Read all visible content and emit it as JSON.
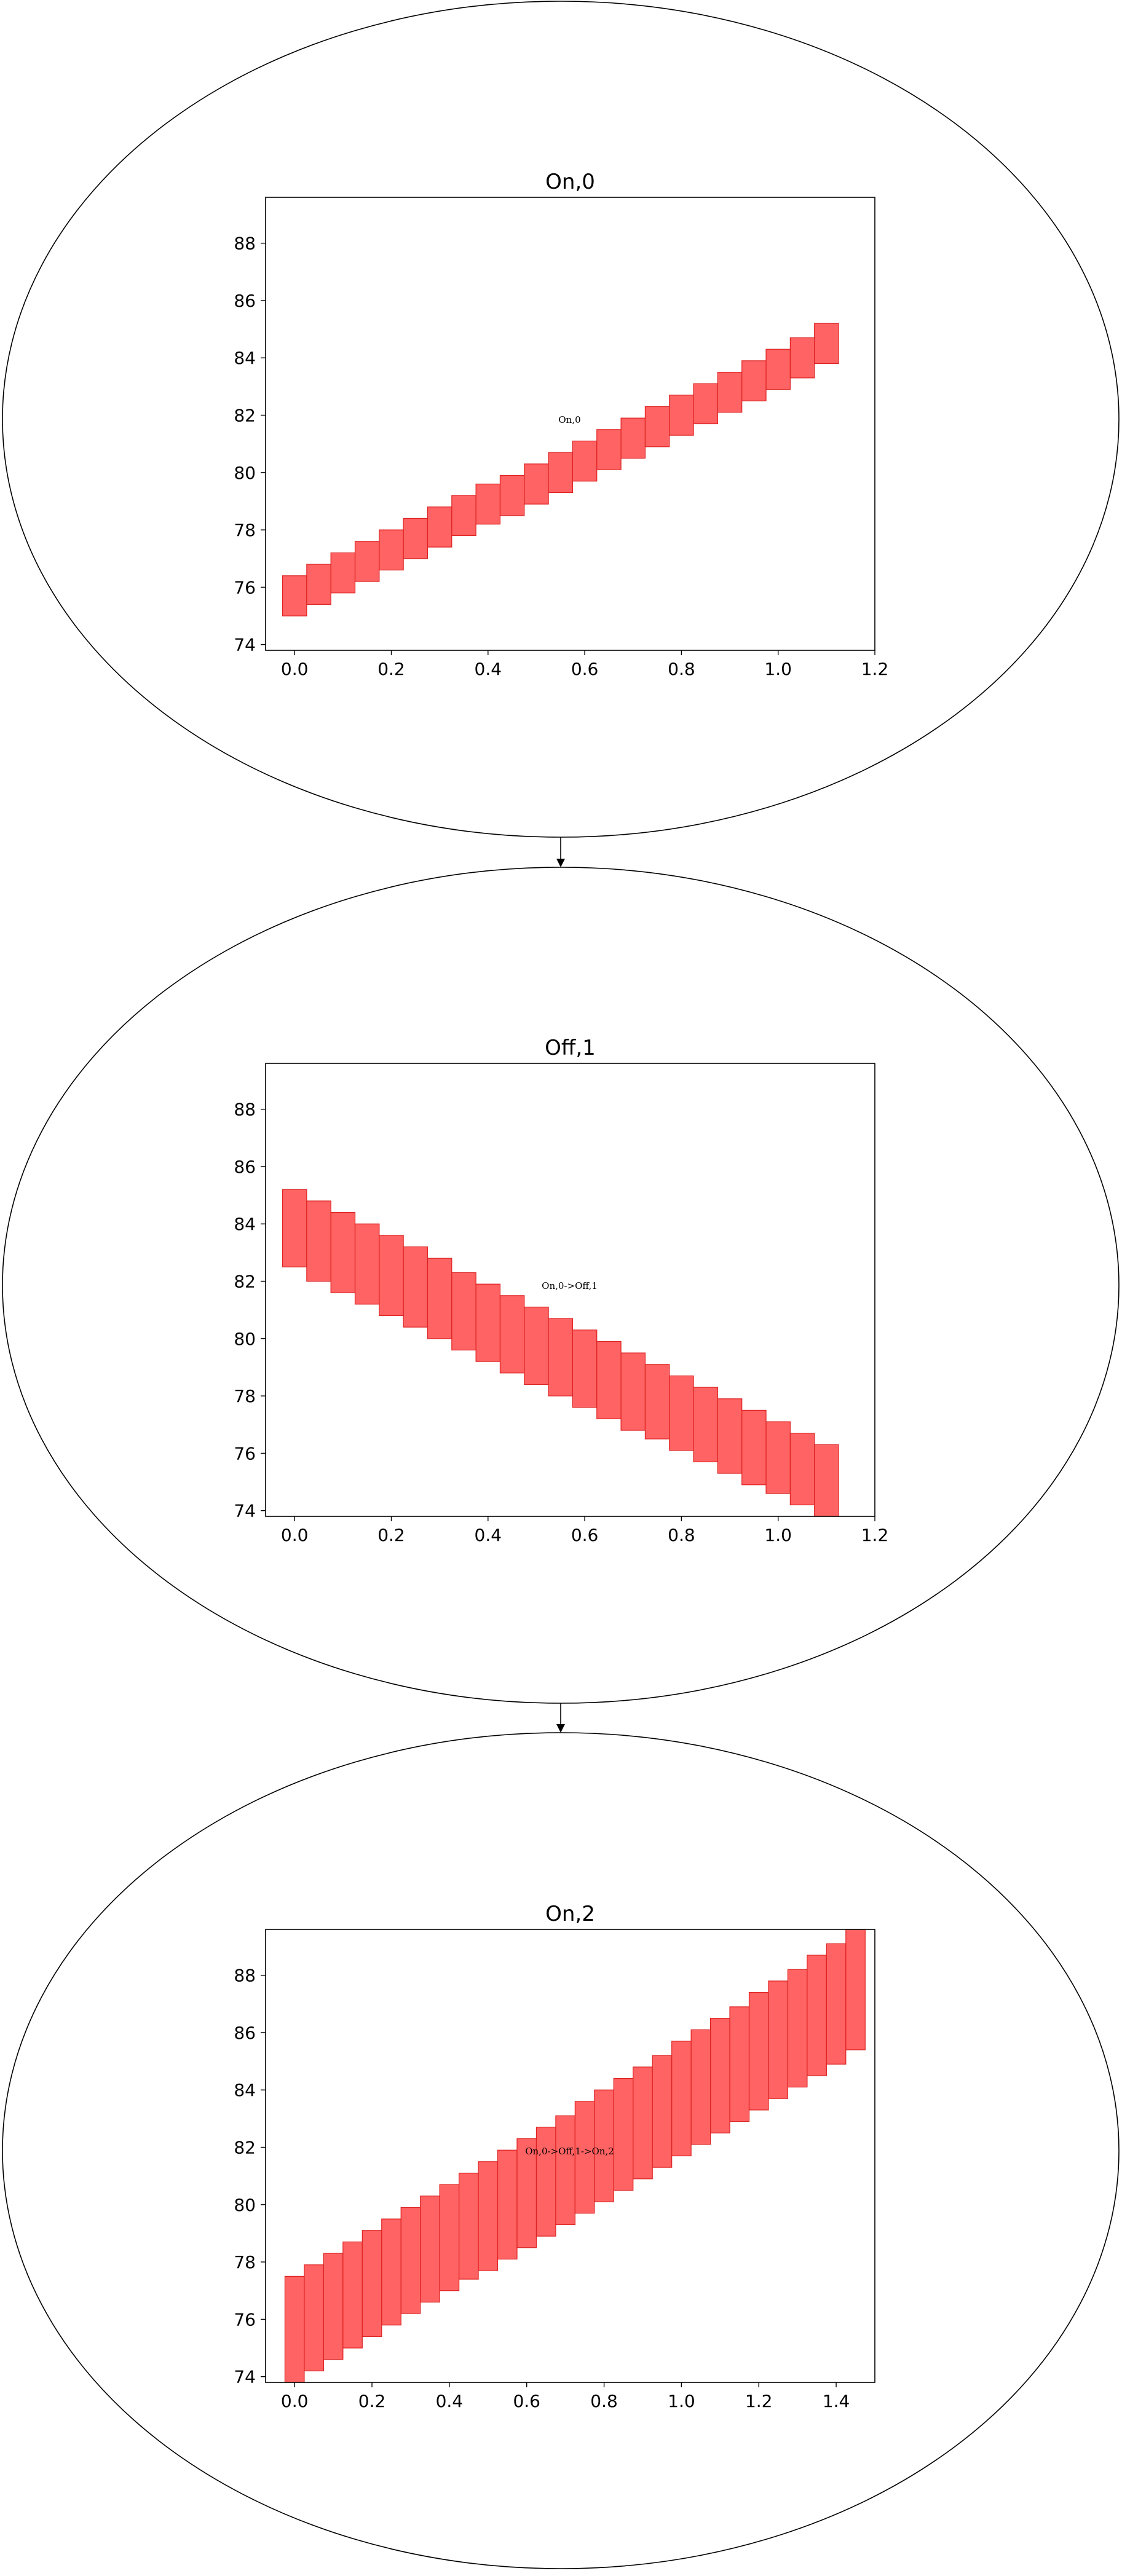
{
  "chart_data": [
    {
      "type": "bar",
      "node": "On,0",
      "title": "On,0",
      "annotation": "On,0",
      "xlim": [
        -0.06,
        1.2
      ],
      "ylim": [
        73.8,
        89.6
      ],
      "xticks": [
        "0.0",
        "0.2",
        "0.4",
        "0.6",
        "0.8",
        "1.0",
        "1.2"
      ],
      "yticks": [
        "74",
        "76",
        "78",
        "80",
        "82",
        "84",
        "86",
        "88"
      ],
      "bar_color": "#ff4d4d",
      "bar_edge_color": "#dd2222",
      "bars": [
        {
          "x": 0.0,
          "lower": 75.0,
          "upper": 76.4
        },
        {
          "x": 0.05,
          "lower": 75.4,
          "upper": 76.8
        },
        {
          "x": 0.1,
          "lower": 75.8,
          "upper": 77.2
        },
        {
          "x": 0.15,
          "lower": 76.2,
          "upper": 77.6
        },
        {
          "x": 0.2,
          "lower": 76.6,
          "upper": 78.0
        },
        {
          "x": 0.25,
          "lower": 77.0,
          "upper": 78.4
        },
        {
          "x": 0.3,
          "lower": 77.4,
          "upper": 78.8
        },
        {
          "x": 0.35,
          "lower": 77.8,
          "upper": 79.2
        },
        {
          "x": 0.4,
          "lower": 78.2,
          "upper": 79.6
        },
        {
          "x": 0.45,
          "lower": 78.5,
          "upper": 79.9
        },
        {
          "x": 0.5,
          "lower": 78.9,
          "upper": 80.3
        },
        {
          "x": 0.55,
          "lower": 79.3,
          "upper": 80.7
        },
        {
          "x": 0.6,
          "lower": 79.7,
          "upper": 81.1
        },
        {
          "x": 0.65,
          "lower": 80.1,
          "upper": 81.5
        },
        {
          "x": 0.7,
          "lower": 80.5,
          "upper": 81.9
        },
        {
          "x": 0.75,
          "lower": 80.9,
          "upper": 82.3
        },
        {
          "x": 0.8,
          "lower": 81.3,
          "upper": 82.7
        },
        {
          "x": 0.85,
          "lower": 81.7,
          "upper": 83.1
        },
        {
          "x": 0.9,
          "lower": 82.1,
          "upper": 83.5
        },
        {
          "x": 0.95,
          "lower": 82.5,
          "upper": 83.9
        },
        {
          "x": 1.0,
          "lower": 82.9,
          "upper": 84.3
        },
        {
          "x": 1.05,
          "lower": 83.3,
          "upper": 84.7
        },
        {
          "x": 1.1,
          "lower": 83.8,
          "upper": 85.2
        }
      ]
    },
    {
      "type": "bar",
      "node": "Off,1",
      "title": "Off,1",
      "annotation": "On,0->Off,1",
      "xlim": [
        -0.06,
        1.2
      ],
      "ylim": [
        73.8,
        89.6
      ],
      "xticks": [
        "0.0",
        "0.2",
        "0.4",
        "0.6",
        "0.8",
        "1.0",
        "1.2"
      ],
      "yticks": [
        "74",
        "76",
        "78",
        "80",
        "82",
        "84",
        "86",
        "88"
      ],
      "bar_color": "#ff4d4d",
      "bar_edge_color": "#dd2222",
      "bars": [
        {
          "x": 0.0,
          "lower": 82.5,
          "upper": 85.2
        },
        {
          "x": 0.05,
          "lower": 82.0,
          "upper": 84.8
        },
        {
          "x": 0.1,
          "lower": 81.6,
          "upper": 84.4
        },
        {
          "x": 0.15,
          "lower": 81.2,
          "upper": 84.0
        },
        {
          "x": 0.2,
          "lower": 80.8,
          "upper": 83.6
        },
        {
          "x": 0.25,
          "lower": 80.4,
          "upper": 83.2
        },
        {
          "x": 0.3,
          "lower": 80.0,
          "upper": 82.8
        },
        {
          "x": 0.35,
          "lower": 79.6,
          "upper": 82.3
        },
        {
          "x": 0.4,
          "lower": 79.2,
          "upper": 81.9
        },
        {
          "x": 0.45,
          "lower": 78.8,
          "upper": 81.5
        },
        {
          "x": 0.5,
          "lower": 78.4,
          "upper": 81.1
        },
        {
          "x": 0.55,
          "lower": 78.0,
          "upper": 80.7
        },
        {
          "x": 0.6,
          "lower": 77.6,
          "upper": 80.3
        },
        {
          "x": 0.65,
          "lower": 77.2,
          "upper": 79.9
        },
        {
          "x": 0.7,
          "lower": 76.8,
          "upper": 79.5
        },
        {
          "x": 0.75,
          "lower": 76.5,
          "upper": 79.1
        },
        {
          "x": 0.8,
          "lower": 76.1,
          "upper": 78.7
        },
        {
          "x": 0.85,
          "lower": 75.7,
          "upper": 78.3
        },
        {
          "x": 0.9,
          "lower": 75.3,
          "upper": 77.9
        },
        {
          "x": 0.95,
          "lower": 74.9,
          "upper": 77.5
        },
        {
          "x": 1.0,
          "lower": 74.6,
          "upper": 77.1
        },
        {
          "x": 1.05,
          "lower": 74.2,
          "upper": 76.7
        },
        {
          "x": 1.1,
          "lower": 73.8,
          "upper": 76.3
        }
      ]
    },
    {
      "type": "bar",
      "node": "On,2",
      "title": "On,2",
      "annotation": "On,0->Off,1->On,2",
      "xlim": [
        -0.075,
        1.5
      ],
      "ylim": [
        73.8,
        89.6
      ],
      "xticks": [
        "0.0",
        "0.2",
        "0.4",
        "0.6",
        "0.8",
        "1.0",
        "1.2",
        "1.4"
      ],
      "yticks": [
        "74",
        "76",
        "78",
        "80",
        "82",
        "84",
        "86",
        "88"
      ],
      "bar_color": "#ff4d4d",
      "bar_edge_color": "#dd2222",
      "bars": [
        {
          "x": 0.0,
          "lower": 73.8,
          "upper": 77.5
        },
        {
          "x": 0.05,
          "lower": 74.2,
          "upper": 77.9
        },
        {
          "x": 0.1,
          "lower": 74.6,
          "upper": 78.3
        },
        {
          "x": 0.15,
          "lower": 75.0,
          "upper": 78.7
        },
        {
          "x": 0.2,
          "lower": 75.4,
          "upper": 79.1
        },
        {
          "x": 0.25,
          "lower": 75.8,
          "upper": 79.5
        },
        {
          "x": 0.3,
          "lower": 76.2,
          "upper": 79.9
        },
        {
          "x": 0.35,
          "lower": 76.6,
          "upper": 80.3
        },
        {
          "x": 0.4,
          "lower": 77.0,
          "upper": 80.7
        },
        {
          "x": 0.45,
          "lower": 77.4,
          "upper": 81.1
        },
        {
          "x": 0.5,
          "lower": 77.7,
          "upper": 81.5
        },
        {
          "x": 0.55,
          "lower": 78.1,
          "upper": 81.9
        },
        {
          "x": 0.6,
          "lower": 78.5,
          "upper": 82.3
        },
        {
          "x": 0.65,
          "lower": 78.9,
          "upper": 82.7
        },
        {
          "x": 0.7,
          "lower": 79.3,
          "upper": 83.1
        },
        {
          "x": 0.75,
          "lower": 79.7,
          "upper": 83.6
        },
        {
          "x": 0.8,
          "lower": 80.1,
          "upper": 84.0
        },
        {
          "x": 0.85,
          "lower": 80.5,
          "upper": 84.4
        },
        {
          "x": 0.9,
          "lower": 80.9,
          "upper": 84.8
        },
        {
          "x": 0.95,
          "lower": 81.3,
          "upper": 85.2
        },
        {
          "x": 1.0,
          "lower": 81.7,
          "upper": 85.7
        },
        {
          "x": 1.05,
          "lower": 82.1,
          "upper": 86.1
        },
        {
          "x": 1.1,
          "lower": 82.5,
          "upper": 86.5
        },
        {
          "x": 1.15,
          "lower": 82.9,
          "upper": 86.9
        },
        {
          "x": 1.2,
          "lower": 83.3,
          "upper": 87.4
        },
        {
          "x": 1.25,
          "lower": 83.7,
          "upper": 87.8
        },
        {
          "x": 1.3,
          "lower": 84.1,
          "upper": 88.2
        },
        {
          "x": 1.35,
          "lower": 84.5,
          "upper": 88.7
        },
        {
          "x": 1.4,
          "lower": 84.9,
          "upper": 89.1
        },
        {
          "x": 1.45,
          "lower": 85.4,
          "upper": 89.6
        }
      ]
    }
  ]
}
